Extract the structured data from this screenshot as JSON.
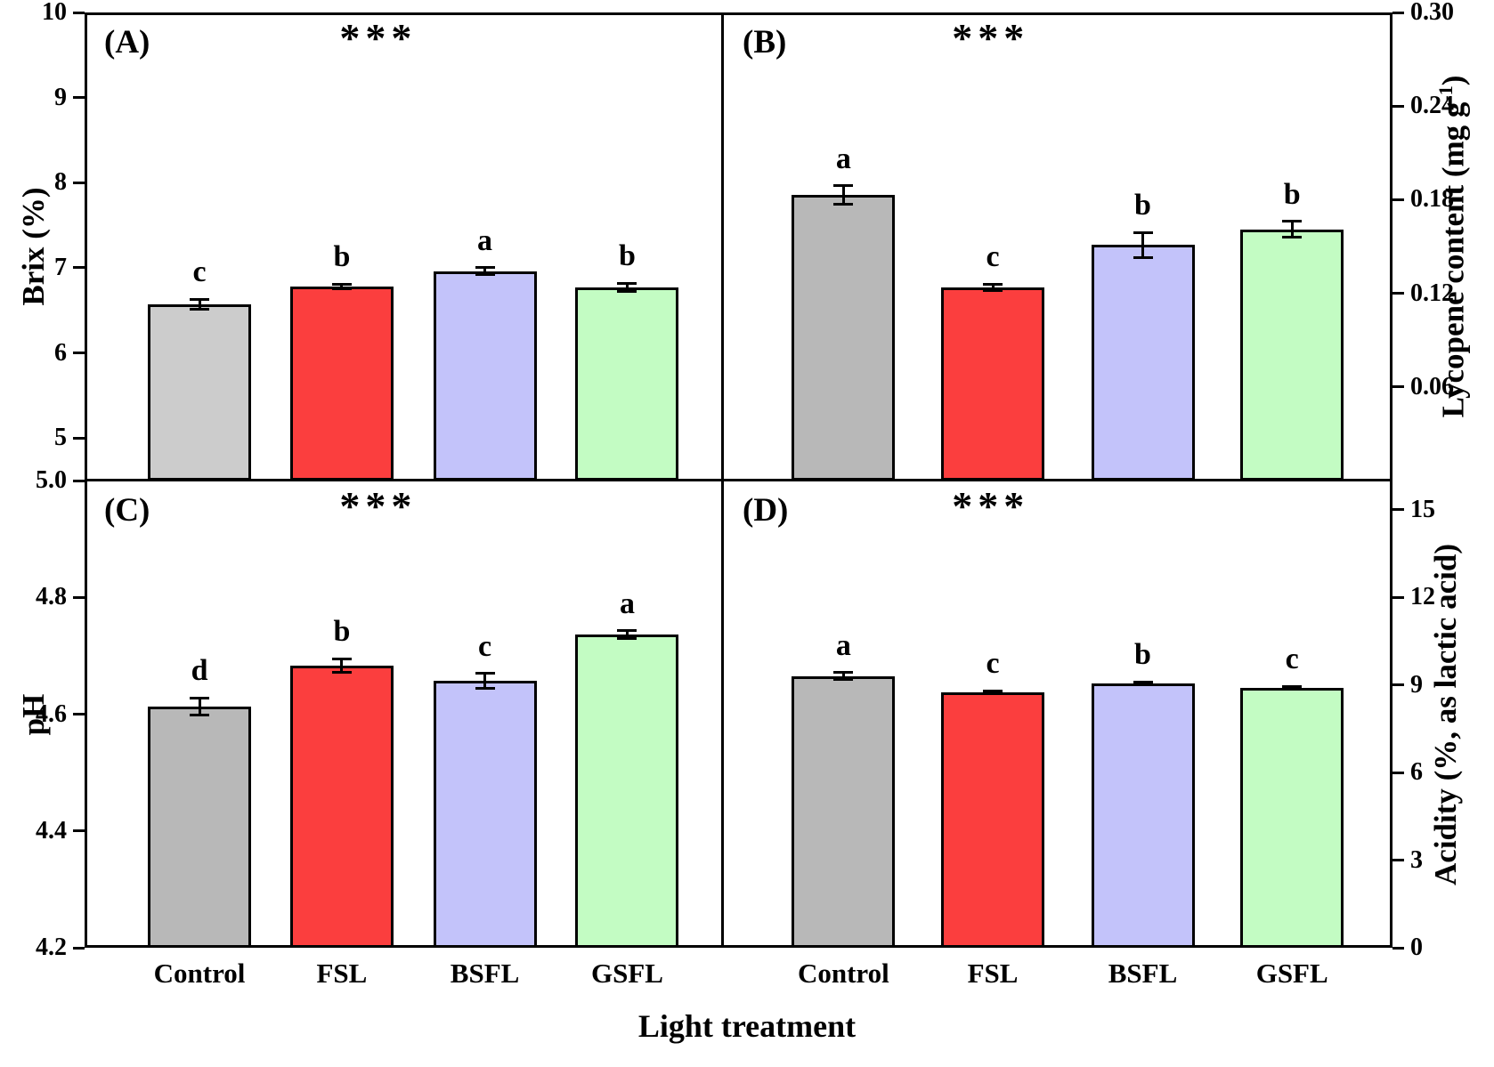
{
  "chart_data": {
    "type": "bar",
    "xlabel": "Light treatment",
    "categories": [
      "Control",
      "FSL",
      "BSFL",
      "GSFL"
    ],
    "error_bar_color": "#000000",
    "bar_outline_color": "#000000",
    "panels": [
      {
        "id": "A",
        "panel_label": "(A)",
        "significance": "***",
        "ylabel": "Brix (%)",
        "axis_side": "left",
        "ylim": [
          4.5,
          10
        ],
        "yticks": [
          {
            "value": 10,
            "label": "10"
          },
          {
            "value": 9,
            "label": "9"
          },
          {
            "value": 8,
            "label": "8"
          },
          {
            "value": 7,
            "label": "7"
          },
          {
            "value": 6,
            "label": "6"
          },
          {
            "value": 5,
            "label": "5"
          }
        ],
        "bars": [
          {
            "category": "Control",
            "value": 6.57,
            "error": 0.06,
            "letter": "c",
            "color": "#cccccc"
          },
          {
            "category": "FSL",
            "value": 6.78,
            "error": 0.03,
            "letter": "b",
            "color": "#fb3e3e"
          },
          {
            "category": "BSFL",
            "value": 6.96,
            "error": 0.04,
            "letter": "a",
            "color": "#c3c3fa"
          },
          {
            "category": "GSFL",
            "value": 6.77,
            "error": 0.05,
            "letter": "b",
            "color": "#c3fcc3"
          }
        ]
      },
      {
        "id": "B",
        "panel_label": "(B)",
        "significance": "***",
        "ylabel": "Lycopene content (mg g⁻¹)",
        "ylabel_parts": {
          "pre": "Lycopene content (mg g",
          "sup": "-1",
          "post": ")"
        },
        "axis_side": "right",
        "ylim": [
          0,
          0.3
        ],
        "yticks": [
          {
            "value": 0.3,
            "label": "0.30"
          },
          {
            "value": 0.24,
            "label": "0.24"
          },
          {
            "value": 0.18,
            "label": "0.18"
          },
          {
            "value": 0.12,
            "label": "0.12"
          },
          {
            "value": 0.06,
            "label": "0.06"
          }
        ],
        "bars": [
          {
            "category": "Control",
            "value": 0.183,
            "error": 0.006,
            "letter": "a",
            "color": "#b8b8b8"
          },
          {
            "category": "FSL",
            "value": 0.124,
            "error": 0.002,
            "letter": "c",
            "color": "#fb3e3e"
          },
          {
            "category": "BSFL",
            "value": 0.151,
            "error": 0.008,
            "letter": "b",
            "color": "#c3c3fa"
          },
          {
            "category": "GSFL",
            "value": 0.161,
            "error": 0.005,
            "letter": "b",
            "color": "#c3fcc3"
          }
        ]
      },
      {
        "id": "C",
        "panel_label": "(C)",
        "significance": "***",
        "ylabel": "pH",
        "axis_side": "left",
        "ylim": [
          4.2,
          5.0
        ],
        "yticks": [
          {
            "value": 5.0,
            "label": "5.0"
          },
          {
            "value": 4.8,
            "label": "4.8"
          },
          {
            "value": 4.6,
            "label": "4.6"
          },
          {
            "value": 4.4,
            "label": "4.4"
          },
          {
            "value": 4.2,
            "label": "4.2"
          }
        ],
        "bars": [
          {
            "category": "Control",
            "value": 4.613,
            "error": 0.015,
            "letter": "d",
            "color": "#b8b8b8"
          },
          {
            "category": "FSL",
            "value": 4.683,
            "error": 0.012,
            "letter": "b",
            "color": "#fb3e3e"
          },
          {
            "category": "BSFL",
            "value": 4.657,
            "error": 0.013,
            "letter": "c",
            "color": "#c3c3fa"
          },
          {
            "category": "GSFL",
            "value": 4.736,
            "error": 0.007,
            "letter": "a",
            "color": "#c3fcc3"
          }
        ]
      },
      {
        "id": "D",
        "panel_label": "(D)",
        "significance": "***",
        "ylabel": "Acidity (%, as lactic acid)",
        "axis_side": "right",
        "ylim": [
          0,
          16
        ],
        "yticks": [
          {
            "value": 15,
            "label": "15"
          },
          {
            "value": 12,
            "label": "12"
          },
          {
            "value": 9,
            "label": "9"
          },
          {
            "value": 6,
            "label": "6"
          },
          {
            "value": 3,
            "label": "3"
          },
          {
            "value": 0,
            "label": "0"
          }
        ],
        "bars": [
          {
            "category": "Control",
            "value": 9.3,
            "error": 0.12,
            "letter": "a",
            "color": "#b8b8b8"
          },
          {
            "category": "FSL",
            "value": 8.75,
            "error": 0.05,
            "letter": "c",
            "color": "#fb3e3e"
          },
          {
            "category": "BSFL",
            "value": 9.05,
            "error": 0.05,
            "letter": "b",
            "color": "#c3c3fa"
          },
          {
            "category": "GSFL",
            "value": 8.9,
            "error": 0.05,
            "letter": "c",
            "color": "#c3fcc3"
          }
        ]
      }
    ]
  }
}
